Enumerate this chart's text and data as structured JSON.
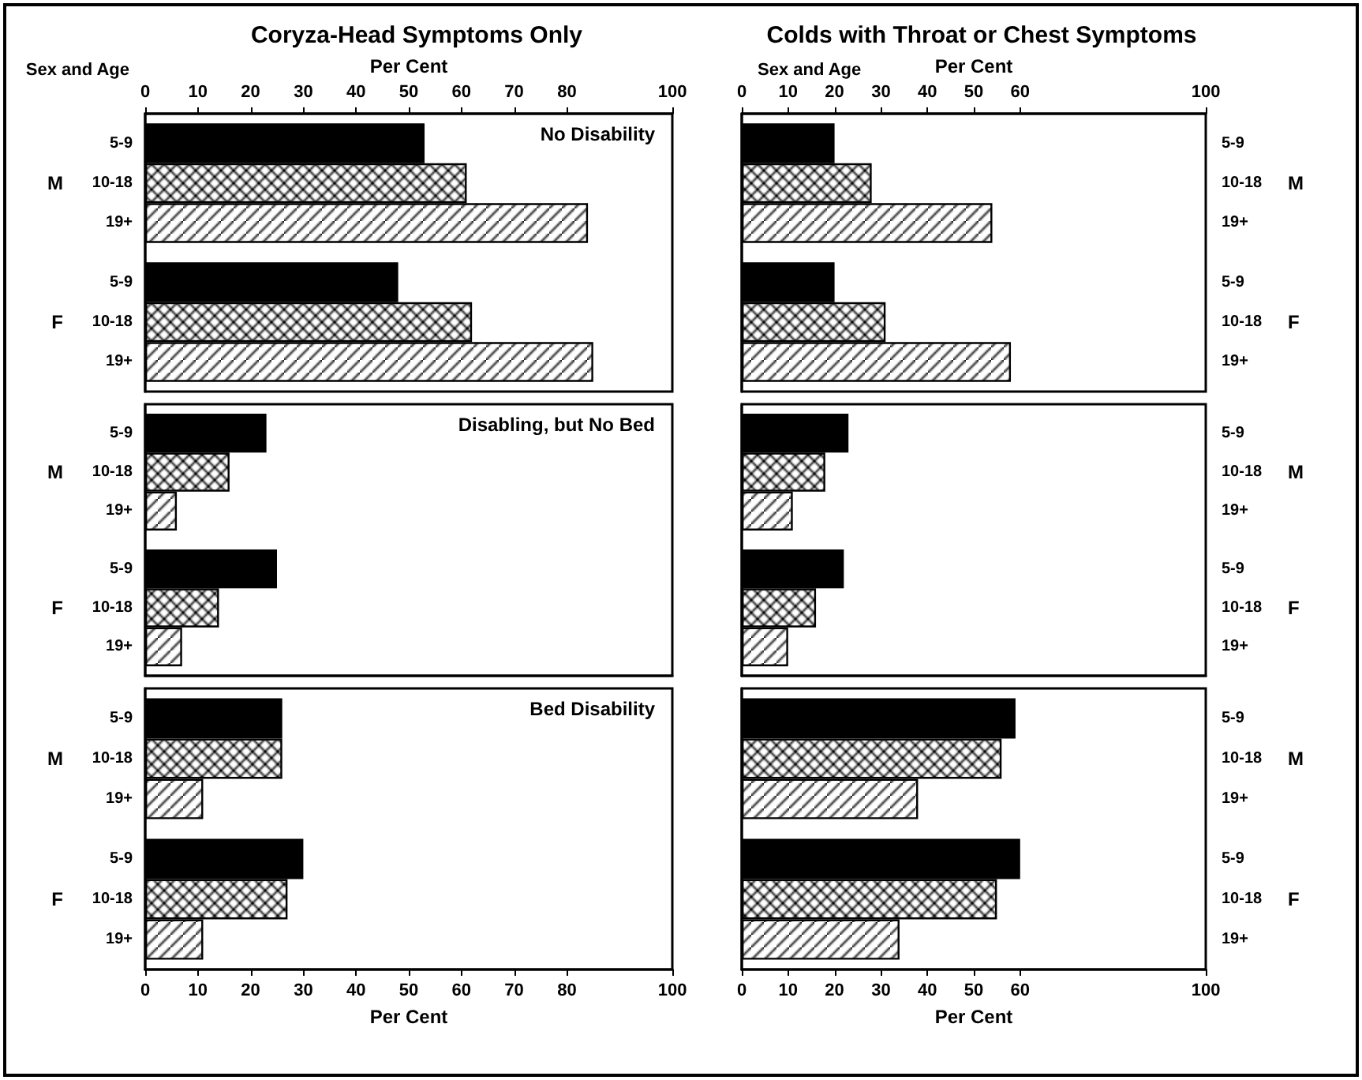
{
  "chart_data": [
    {
      "type": "bar",
      "orientation": "horizontal",
      "title": "Coryza-Head Symptoms Only",
      "subtitle": "No Disability",
      "xlabel": "Per Cent",
      "ylabel": "Sex and Age",
      "categories": [
        "M",
        "F"
      ],
      "xlim": [
        0,
        100
      ],
      "xticks": [
        0,
        10,
        20,
        30,
        40,
        50,
        60,
        70,
        80,
        100
      ],
      "legend": false,
      "grid": false,
      "series": [
        {
          "name": "5-9",
          "color": "#000000",
          "values": [
            53,
            48
          ]
        },
        {
          "name": "10-18",
          "color": "#000000",
          "values": [
            61,
            62
          ]
        },
        {
          "name": "19+",
          "color": "#000000",
          "values": [
            84,
            85
          ]
        }
      ]
    },
    {
      "type": "bar",
      "orientation": "horizontal",
      "title": "Colds with Throat or Chest Symptoms",
      "xlabel": "Per Cent",
      "ylabel": "Sex and Age",
      "categories": [
        "M",
        "F"
      ],
      "xlim": [
        0,
        100
      ],
      "xticks": [
        0,
        10,
        20,
        30,
        40,
        50,
        60,
        100
      ],
      "legend": false,
      "grid": false,
      "series": [
        {
          "name": "5-9",
          "color": "#000000",
          "values": [
            20,
            20
          ]
        },
        {
          "name": "10-18",
          "color": "#000000",
          "values": [
            28,
            31
          ]
        },
        {
          "name": "19+",
          "color": "#000000",
          "values": [
            54,
            58
          ]
        }
      ]
    },
    {
      "type": "bar",
      "orientation": "horizontal",
      "subtitle": "Disabling, but No Bed",
      "categories": [
        "M",
        "F"
      ],
      "xlim": [
        0,
        100
      ],
      "tick_labels": "y",
      "legend": false,
      "grid": false,
      "series": [
        {
          "name": "5-9",
          "color": "#000000",
          "values": [
            23,
            25
          ]
        },
        {
          "name": "10-18",
          "color": "#000000",
          "values": [
            16,
            14
          ]
        },
        {
          "name": "19+",
          "color": "#000000",
          "values": [
            6,
            7
          ]
        }
      ]
    },
    {
      "type": "bar",
      "orientation": "horizontal",
      "categories": [
        "M",
        "F"
      ],
      "xlim": [
        0,
        100
      ],
      "tick_labels": "y",
      "legend": false,
      "grid": false,
      "series": [
        {
          "name": "5-9",
          "color": "#000000",
          "values": [
            23,
            22
          ]
        },
        {
          "name": "10-18",
          "color": "#000000",
          "values": [
            18,
            16
          ]
        },
        {
          "name": "19+",
          "color": "#000000",
          "values": [
            11,
            10
          ]
        }
      ]
    },
    {
      "type": "bar",
      "orientation": "horizontal",
      "subtitle": "Bed Disability",
      "xlabel": "Per Cent",
      "categories": [
        "M",
        "F"
      ],
      "xlim": [
        0,
        100
      ],
      "xticks": [
        0,
        10,
        20,
        30,
        40,
        50,
        60,
        70,
        80,
        100
      ],
      "legend": false,
      "grid": false,
      "series": [
        {
          "name": "5-9",
          "color": "#000000",
          "values": [
            26,
            30
          ]
        },
        {
          "name": "10-18",
          "color": "#000000",
          "values": [
            26,
            27
          ]
        },
        {
          "name": "19+",
          "color": "#000000",
          "values": [
            11,
            11
          ]
        }
      ]
    },
    {
      "type": "bar",
      "orientation": "horizontal",
      "xlabel": "Per Cent",
      "categories": [
        "M",
        "F"
      ],
      "xlim": [
        0,
        100
      ],
      "xticks": [
        0,
        10,
        20,
        30,
        40,
        50,
        60,
        100
      ],
      "legend": false,
      "grid": false,
      "series": [
        {
          "name": "5-9",
          "color": "#000000",
          "values": [
            59,
            60
          ]
        },
        {
          "name": "10-18",
          "color": "#000000",
          "values": [
            56,
            55
          ]
        },
        {
          "name": "19+",
          "color": "#000000",
          "values": [
            38,
            34
          ]
        }
      ]
    }
  ]
}
